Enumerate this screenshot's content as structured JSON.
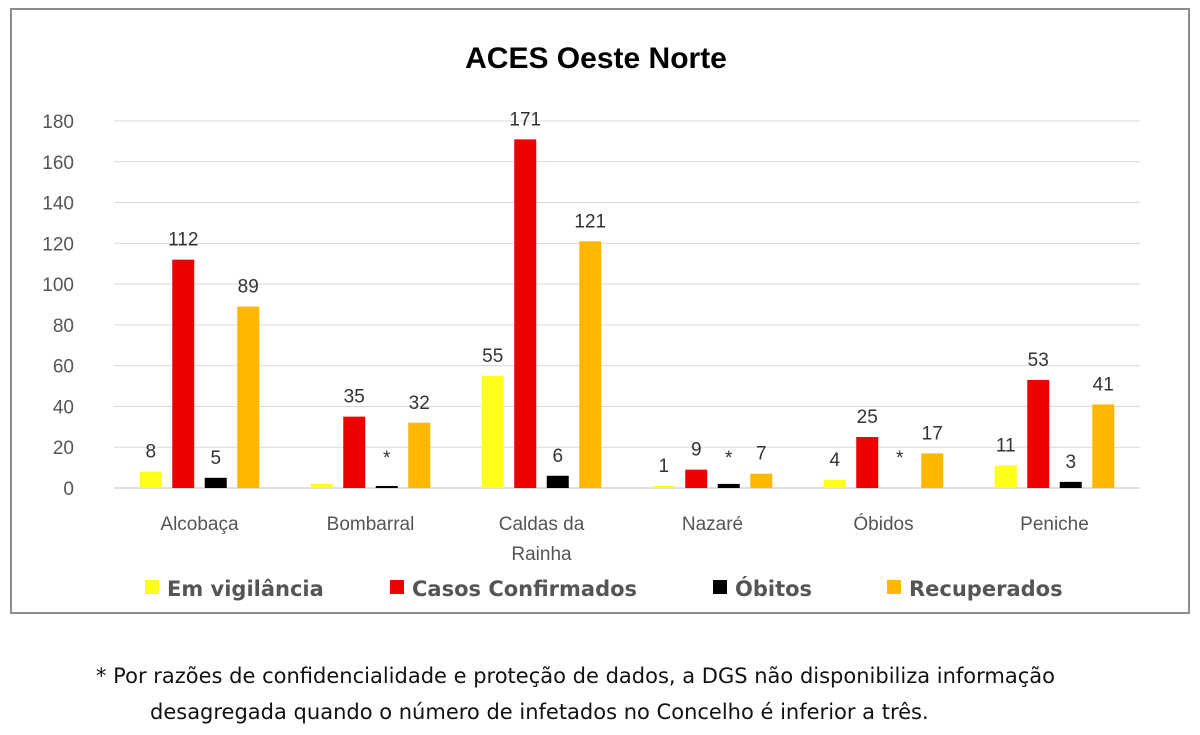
{
  "chart_data": {
    "type": "bar",
    "title": "ACES Oeste Norte",
    "categories": [
      [
        "Alcobaça"
      ],
      [
        "Bombarral"
      ],
      [
        "Caldas da",
        "Rainha"
      ],
      [
        "Nazaré"
      ],
      [
        "Óbidos"
      ],
      [
        "Peniche"
      ]
    ],
    "series": [
      {
        "name": "Em vigilância",
        "color": "#ffff1a",
        "values": [
          8,
          2,
          55,
          1,
          4,
          11
        ],
        "labels": [
          "8",
          "",
          "55",
          "1",
          "4",
          "11"
        ]
      },
      {
        "name": "Casos Confirmados",
        "color": "#ee0000",
        "values": [
          112,
          35,
          171,
          9,
          25,
          53
        ],
        "labels": [
          "112",
          "35",
          "171",
          "9",
          "25",
          "53"
        ]
      },
      {
        "name": "Óbitos",
        "color": "#000000",
        "values": [
          5,
          1,
          6,
          2,
          0,
          3
        ],
        "labels": [
          "5",
          "*",
          "6",
          "*",
          "*",
          "3"
        ]
      },
      {
        "name": "Recuperados",
        "color": "#ffb800",
        "values": [
          89,
          32,
          121,
          7,
          17,
          41
        ],
        "labels": [
          "89",
          "32",
          "121",
          "7",
          "17",
          "41"
        ]
      }
    ],
    "ylim": [
      0,
      180
    ],
    "yticks": [
      0,
      20,
      40,
      60,
      80,
      100,
      120,
      140,
      160,
      180
    ],
    "grid": true,
    "legend_position": "bottom"
  },
  "footnote": {
    "line1": "* Por razões de confidencialidade e proteção de dados, a DGS não disponibiliza informação",
    "line2": "desagregada quando o número de infetados no Concelho é inferior a três."
  }
}
